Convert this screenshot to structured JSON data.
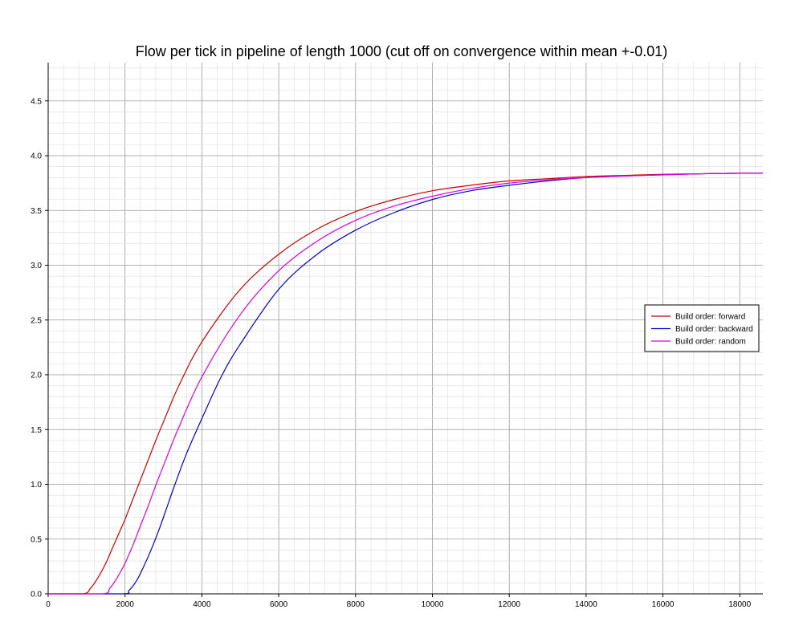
{
  "chart_data": {
    "type": "line",
    "title": "Flow per tick in pipeline of length 1000 (cut off on convergence within mean +-0.01)",
    "xlabel": "",
    "ylabel": "",
    "xlim": [
      0,
      18600
    ],
    "ylim": [
      0,
      4.85
    ],
    "x_ticks": [
      0,
      2000,
      4000,
      6000,
      8000,
      10000,
      12000,
      14000,
      16000,
      18000
    ],
    "x_tick_labels": [
      "0",
      "2000",
      "4000",
      "6000",
      "8000",
      "10000",
      "12000",
      "14000",
      "16000",
      "18000"
    ],
    "y_ticks": [
      0,
      0.5,
      1,
      1.5,
      2,
      2.5,
      3,
      3.5,
      4,
      4.5
    ],
    "y_tick_labels": [
      "0.0",
      "0.5",
      "1.0",
      "1.5",
      "2.0",
      "2.5",
      "3.0",
      "3.5",
      "4.0",
      "4.5"
    ],
    "grid": true,
    "legend_position": "right",
    "series": [
      {
        "name": "Build order: forward",
        "color": "#cc0000",
        "x": [
          0,
          900,
          1100,
          1300,
          1500,
          1700,
          1900,
          2000,
          2200,
          2400,
          2600,
          2800,
          3000,
          3400,
          4000,
          5000,
          6000,
          7000,
          8000,
          9000,
          10000,
          11000,
          12000,
          13000,
          14000,
          15000,
          16000,
          17000,
          18000,
          18600
        ],
        "values": [
          0,
          0,
          0.05,
          0.15,
          0.28,
          0.44,
          0.6,
          0.68,
          0.86,
          1.04,
          1.22,
          1.4,
          1.57,
          1.9,
          2.3,
          2.78,
          3.1,
          3.33,
          3.49,
          3.6,
          3.68,
          3.73,
          3.77,
          3.79,
          3.81,
          3.82,
          3.83,
          3.835,
          3.84,
          3.84
        ]
      },
      {
        "name": "Build order: backward",
        "color": "#0000cc",
        "x": [
          0,
          1900,
          2100,
          2300,
          2500,
          2700,
          2900,
          3100,
          3300,
          3600,
          4000,
          4500,
          5000,
          6000,
          7000,
          8000,
          9000,
          10000,
          11000,
          12000,
          13000,
          14000,
          15000,
          16000,
          17000,
          18000,
          18600
        ],
        "values": [
          0,
          0,
          0.03,
          0.12,
          0.26,
          0.42,
          0.6,
          0.8,
          1.0,
          1.28,
          1.6,
          1.98,
          2.28,
          2.78,
          3.1,
          3.32,
          3.48,
          3.6,
          3.68,
          3.73,
          3.77,
          3.8,
          3.815,
          3.825,
          3.835,
          3.84,
          3.84
        ]
      },
      {
        "name": "Build order: random",
        "color": "#dd00dd",
        "x": [
          0,
          1400,
          1600,
          1800,
          2000,
          2200,
          2400,
          2600,
          2800,
          3000,
          3400,
          4000,
          5000,
          6000,
          7000,
          8000,
          9000,
          10000,
          11000,
          12000,
          13000,
          14000,
          15000,
          16000,
          17000,
          18000,
          18600
        ],
        "values": [
          0,
          0,
          0.05,
          0.15,
          0.28,
          0.44,
          0.62,
          0.8,
          0.99,
          1.17,
          1.52,
          1.98,
          2.55,
          2.95,
          3.22,
          3.41,
          3.54,
          3.63,
          3.7,
          3.75,
          3.78,
          3.8,
          3.815,
          3.825,
          3.835,
          3.84,
          3.84
        ]
      }
    ]
  }
}
